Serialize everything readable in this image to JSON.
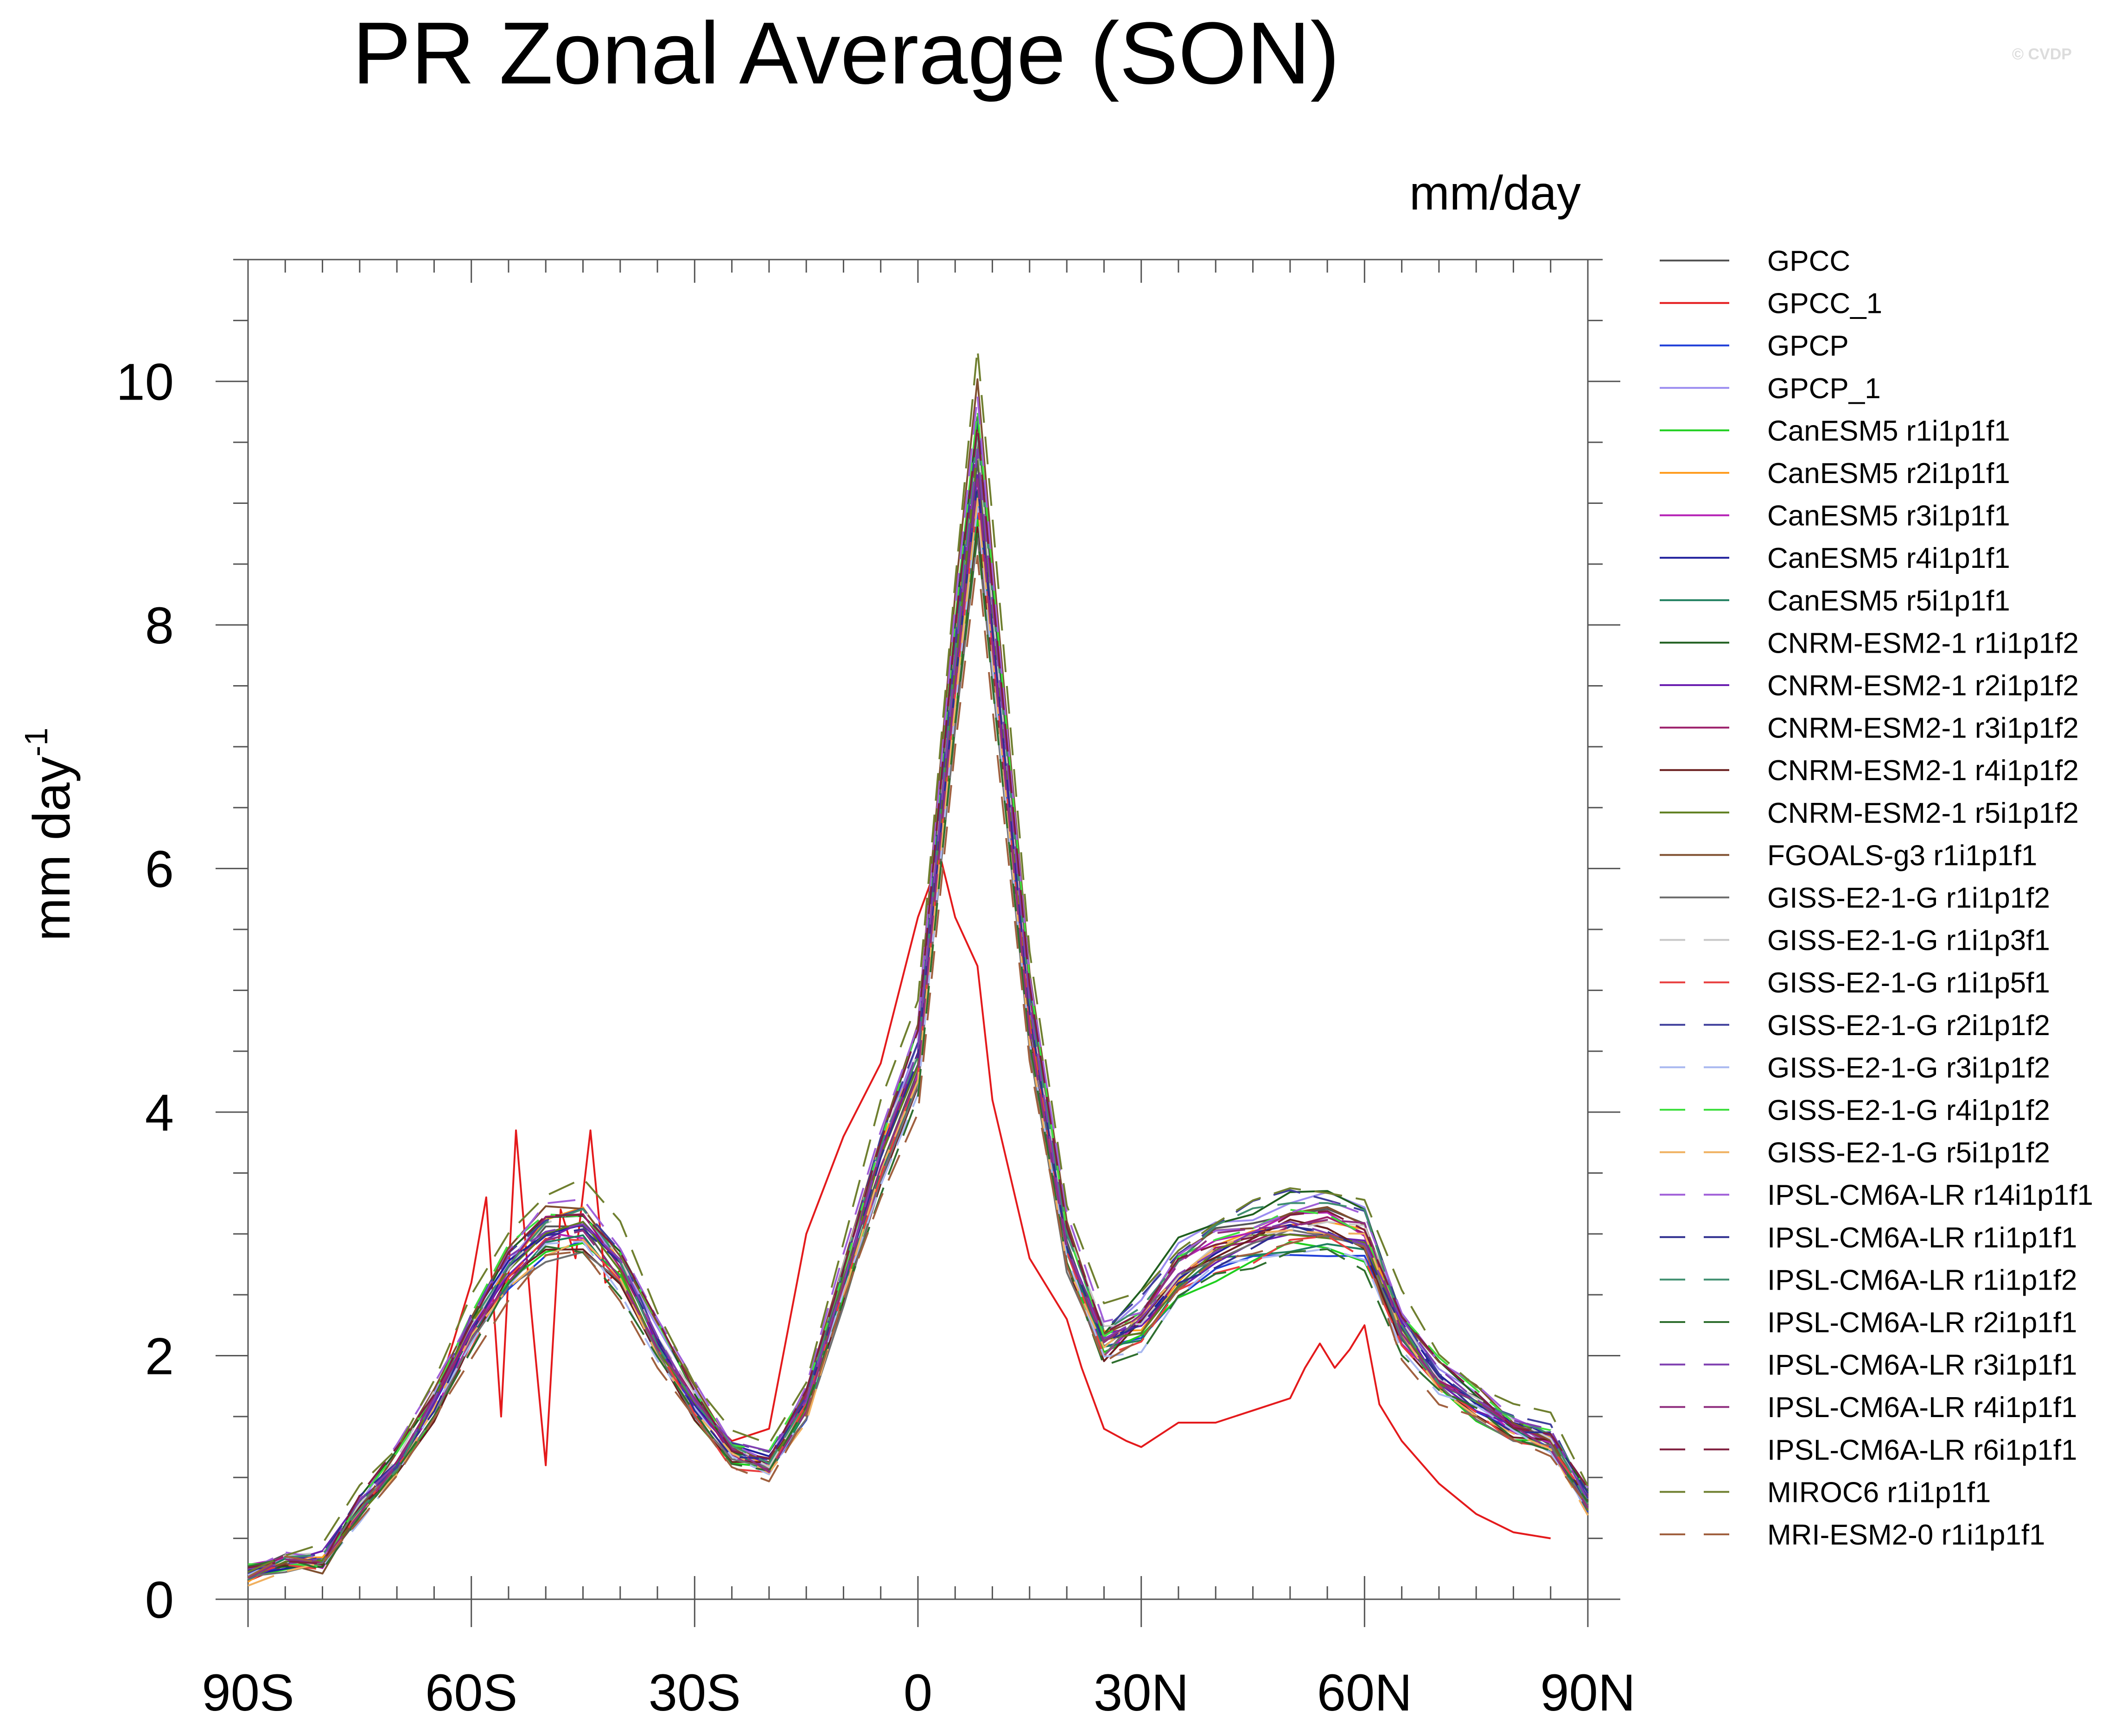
{
  "title": "PR Zonal Average (SON)",
  "credit": "© CVDP",
  "units_label": "mm/day",
  "chart_data": {
    "type": "line",
    "title": "PR Zonal Average (SON)",
    "ylabel": "mm day",
    "ylabel_superscript": "-1",
    "xlabel": "",
    "xlim": [
      -90,
      90
    ],
    "ylim": [
      0,
      11
    ],
    "x_ticks": [
      {
        "value": -90,
        "label": "90S"
      },
      {
        "value": -60,
        "label": "60S"
      },
      {
        "value": -30,
        "label": "30S"
      },
      {
        "value": 0,
        "label": "0"
      },
      {
        "value": 30,
        "label": "30N"
      },
      {
        "value": 60,
        "label": "60N"
      },
      {
        "value": 90,
        "label": "90N"
      }
    ],
    "y_ticks": [
      {
        "value": 0,
        "label": "0"
      },
      {
        "value": 2,
        "label": "2"
      },
      {
        "value": 4,
        "label": "4"
      },
      {
        "value": 6,
        "label": "6"
      },
      {
        "value": 8,
        "label": "8"
      },
      {
        "value": 10,
        "label": "10"
      }
    ],
    "grid": false,
    "legend_position": "right",
    "ensemble": {
      "x": [
        -90,
        -85,
        -80,
        -75,
        -70,
        -65,
        -60,
        -55,
        -50,
        -45,
        -40,
        -35,
        -30,
        -25,
        -20,
        -15,
        -10,
        -5,
        0,
        5,
        8,
        10,
        15,
        20,
        25,
        30,
        35,
        40,
        45,
        50,
        55,
        60,
        65,
        70,
        75,
        80,
        85,
        90
      ],
      "base": [
        0.2,
        0.3,
        0.3,
        0.75,
        1.1,
        1.6,
        2.2,
        2.7,
        3.0,
        3.05,
        2.7,
        2.1,
        1.6,
        1.2,
        1.1,
        1.6,
        2.6,
        3.6,
        4.4,
        7.6,
        9.3,
        8.0,
        4.8,
        2.9,
        2.1,
        2.2,
        2.6,
        2.8,
        2.9,
        3.0,
        3.0,
        2.9,
        2.2,
        1.8,
        1.6,
        1.4,
        1.3,
        0.8
      ],
      "north_group_offset": 0.18
    },
    "series": [
      {
        "name": "GPCC",
        "color": "#555555",
        "dash": "solid",
        "offset": 0.0,
        "bias": 0.0
      },
      {
        "name": "GPCC_1",
        "color": "#e41a1c",
        "dash": "solid",
        "offset": 0.06,
        "bias": -0.02
      },
      {
        "name": "GPCP",
        "color": "#1f3fd8",
        "dash": "solid",
        "offset": -0.05,
        "bias": 0.03
      },
      {
        "name": "GPCP_1",
        "color": "#9b8cf0",
        "dash": "solid",
        "offset": 0.03,
        "bias": 0.02
      },
      {
        "name": "CanESM5 r1i1p1f1",
        "color": "#1fcf1f",
        "dash": "solid",
        "offset": -0.04,
        "bias": 0.0
      },
      {
        "name": "CanESM5 r2i1p1f1",
        "color": "#ff9c1f",
        "dash": "solid",
        "offset": 0.04,
        "bias": -0.03
      },
      {
        "name": "CanESM5 r3i1p1f1",
        "color": "#b51fb5",
        "dash": "solid",
        "offset": -0.02,
        "bias": 0.01
      },
      {
        "name": "CanESM5 r4i1p1f1",
        "color": "#1f1f9c",
        "dash": "solid",
        "offset": 0.02,
        "bias": -0.01
      },
      {
        "name": "CanESM5 r5i1p1f1",
        "color": "#1f7f5f",
        "dash": "solid",
        "offset": -0.03,
        "bias": 0.02
      },
      {
        "name": "CNRM-ESM2-1 r1i1p1f2",
        "color": "#1f5f1f",
        "dash": "solid",
        "offset": 0.05,
        "bias": 0.0
      },
      {
        "name": "CNRM-ESM2-1 r2i1p1f2",
        "color": "#6a1fb0",
        "dash": "solid",
        "offset": -0.01,
        "bias": 0.03
      },
      {
        "name": "CNRM-ESM2-1 r3i1p1f2",
        "color": "#9c1f6a",
        "dash": "solid",
        "offset": 0.03,
        "bias": -0.02
      },
      {
        "name": "CNRM-ESM2-1 r4i1p1f2",
        "color": "#6a1f1f",
        "dash": "solid",
        "offset": -0.05,
        "bias": 0.01
      },
      {
        "name": "CNRM-ESM2-1 r5i1p1f2",
        "color": "#5f7f1f",
        "dash": "solid",
        "offset": 0.01,
        "bias": -0.01
      },
      {
        "name": "FGOALS-g3 r1i1p1f1",
        "color": "#7f4f2f",
        "dash": "solid",
        "offset": 0.08,
        "bias": -0.04
      },
      {
        "name": "GISS-E2-1-G r1i1p1f2",
        "color": "#6f6f6f",
        "dash": "solid",
        "offset": -0.06,
        "bias": 0.02
      },
      {
        "name": "GISS-E2-1-G r1i1p3f1",
        "color": "#c8c8c8",
        "dash": "dashed",
        "offset": 0.02,
        "bias": 0.03
      },
      {
        "name": "GISS-E2-1-G r1i1p5f1",
        "color": "#e83f3f",
        "dash": "dashed",
        "offset": -0.02,
        "bias": -0.03
      },
      {
        "name": "GISS-E2-1-G r2i1p1f2",
        "color": "#3f3f9c",
        "dash": "dashed",
        "offset": 0.04,
        "bias": 0.01
      },
      {
        "name": "GISS-E2-1-G r3i1p1f2",
        "color": "#a8b8f0",
        "dash": "dashed",
        "offset": -0.04,
        "bias": -0.01
      },
      {
        "name": "GISS-E2-1-G r4i1p1f2",
        "color": "#3fdf3f",
        "dash": "dashed",
        "offset": 0.05,
        "bias": 0.02
      },
      {
        "name": "GISS-E2-1-G r5i1p1f2",
        "color": "#f0b05f",
        "dash": "dashed",
        "offset": -0.03,
        "bias": -0.02
      },
      {
        "name": "IPSL-CM6A-LR r14i1p1f1",
        "color": "#a05fd8",
        "dash": "dashed",
        "offset": 0.06,
        "bias": 0.04
      },
      {
        "name": "IPSL-CM6A-LR r1i1p1f1",
        "color": "#2f2f8f",
        "dash": "dashed",
        "offset": -0.01,
        "bias": 0.03
      },
      {
        "name": "IPSL-CM6A-LR r1i1p1f2",
        "color": "#3f8f6f",
        "dash": "dashed",
        "offset": 0.03,
        "bias": -0.01
      },
      {
        "name": "IPSL-CM6A-LR r2i1p1f1",
        "color": "#2f6f2f",
        "dash": "dashed",
        "offset": -0.06,
        "bias": 0.01
      },
      {
        "name": "IPSL-CM6A-LR r3i1p1f1",
        "color": "#7f3fb0",
        "dash": "dashed",
        "offset": 0.01,
        "bias": 0.04
      },
      {
        "name": "IPSL-CM6A-LR r4i1p1f1",
        "color": "#8f2f7f",
        "dash": "dashed",
        "offset": -0.02,
        "bias": 0.02
      },
      {
        "name": "IPSL-CM6A-LR r6i1p1f1",
        "color": "#7f1f3f",
        "dash": "dashed",
        "offset": 0.04,
        "bias": 0.03
      },
      {
        "name": "MIROC6 r1i1p1f1",
        "color": "#6f7f2f",
        "dash": "dashed",
        "offset": 0.1,
        "bias": 0.06
      },
      {
        "name": "MRI-ESM2-0 r1i1p1f1",
        "color": "#a0603f",
        "dash": "dashed",
        "offset": -0.08,
        "bias": 0.0
      }
    ],
    "special_series": {
      "GPCC_1": {
        "x": [
          -90,
          -85,
          -80,
          -75,
          -70,
          -65,
          -60,
          -58,
          -56,
          -54,
          -52,
          -50,
          -48,
          -46,
          -44,
          -42,
          -40,
          -35,
          -30,
          -25,
          -20,
          -15,
          -10,
          -5,
          0,
          3,
          5,
          8,
          10,
          15,
          20,
          22,
          25,
          28,
          30,
          35,
          40,
          45,
          50,
          52,
          54,
          56,
          58,
          60,
          62,
          65,
          70,
          75,
          80,
          85
        ],
        "y": [
          0.15,
          0.28,
          0.3,
          0.75,
          1.1,
          1.6,
          2.6,
          3.3,
          1.5,
          3.85,
          2.4,
          1.1,
          3.2,
          2.8,
          3.85,
          2.6,
          2.7,
          2.0,
          1.6,
          1.3,
          1.4,
          3.0,
          3.8,
          4.4,
          5.6,
          6.1,
          5.6,
          5.2,
          4.1,
          2.8,
          2.3,
          1.9,
          1.4,
          1.3,
          1.25,
          1.45,
          1.45,
          1.55,
          1.65,
          1.9,
          2.1,
          1.9,
          2.05,
          2.25,
          1.6,
          1.3,
          0.95,
          0.7,
          0.55,
          0.5
        ]
      }
    }
  },
  "legend_entries": [
    "GPCC",
    "GPCC_1",
    "GPCP",
    "GPCP_1",
    "CanESM5 r1i1p1f1",
    "CanESM5 r2i1p1f1",
    "CanESM5 r3i1p1f1",
    "CanESM5 r4i1p1f1",
    "CanESM5 r5i1p1f1",
    "CNRM-ESM2-1 r1i1p1f2",
    "CNRM-ESM2-1 r2i1p1f2",
    "CNRM-ESM2-1 r3i1p1f2",
    "CNRM-ESM2-1 r4i1p1f2",
    "CNRM-ESM2-1 r5i1p1f2",
    "FGOALS-g3 r1i1p1f1",
    "GISS-E2-1-G r1i1p1f2",
    "GISS-E2-1-G r1i1p3f1",
    "GISS-E2-1-G r1i1p5f1",
    "GISS-E2-1-G r2i1p1f2",
    "GISS-E2-1-G r3i1p1f2",
    "GISS-E2-1-G r4i1p1f2",
    "GISS-E2-1-G r5i1p1f2",
    "IPSL-CM6A-LR r14i1p1f1",
    "IPSL-CM6A-LR r1i1p1f1",
    "IPSL-CM6A-LR r1i1p1f2",
    "IPSL-CM6A-LR r2i1p1f1",
    "IPSL-CM6A-LR r3i1p1f1",
    "IPSL-CM6A-LR r4i1p1f1",
    "IPSL-CM6A-LR r6i1p1f1",
    "MIROC6 r1i1p1f1",
    "MRI-ESM2-0 r1i1p1f1"
  ]
}
